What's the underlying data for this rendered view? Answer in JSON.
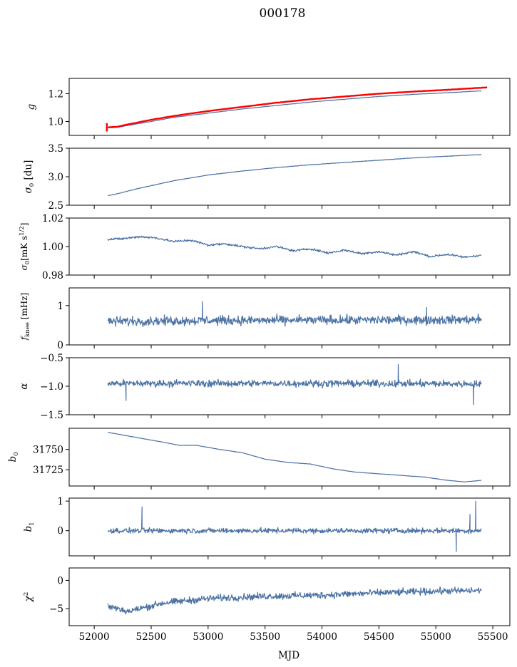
{
  "figure": {
    "title": "000178",
    "xlabel": "MJD"
  },
  "colors": {
    "series": "#4c72a4",
    "reference": "#ff0000",
    "axes": "#000000"
  },
  "chart_data": [
    {
      "type": "line",
      "ylabel": "g",
      "ylim": [
        0.9,
        1.31
      ],
      "xlim": [
        51780,
        55650
      ],
      "yticks": [
        1.0,
        1.2
      ],
      "ytick_labels": [
        "1.0",
        "1.2"
      ],
      "series": [
        {
          "role": "data",
          "x": [
            52120,
            52200,
            52300,
            52500,
            52700,
            53000,
            53300,
            53600,
            53900,
            54200,
            54500,
            54800,
            55100,
            55400
          ],
          "y": [
            0.955,
            0.958,
            0.972,
            1.0,
            1.03,
            1.06,
            1.09,
            1.115,
            1.14,
            1.16,
            1.18,
            1.195,
            1.207,
            1.22
          ]
        },
        {
          "role": "reference",
          "x": [
            52120,
            52200,
            52300,
            52500,
            52700,
            53000,
            53300,
            53600,
            53900,
            54200,
            54500,
            54800,
            55100,
            55450
          ],
          "y": [
            0.958,
            0.962,
            0.98,
            1.012,
            1.04,
            1.075,
            1.105,
            1.135,
            1.16,
            1.18,
            1.2,
            1.215,
            1.228,
            1.245
          ]
        }
      ]
    },
    {
      "type": "line",
      "ylabel": "σ0 [du]",
      "ylim": [
        2.5,
        3.5
      ],
      "xlim": [
        51780,
        55650
      ],
      "yticks": [
        2.5,
        3.0,
        3.5
      ],
      "ytick_labels": [
        "2.5",
        "3.0",
        "3.5"
      ],
      "series": [
        {
          "role": "data",
          "x": [
            52120,
            52200,
            52400,
            52700,
            53000,
            53300,
            53600,
            53900,
            54200,
            54500,
            54800,
            55100,
            55400
          ],
          "y": [
            2.67,
            2.7,
            2.8,
            2.93,
            3.03,
            3.1,
            3.16,
            3.21,
            3.25,
            3.29,
            3.33,
            3.36,
            3.39
          ]
        }
      ]
    },
    {
      "type": "line",
      "ylabel": "σ0[mK s1/2]",
      "ylim": [
        0.98,
        1.02
      ],
      "xlim": [
        51780,
        55650
      ],
      "yticks": [
        0.98,
        1.0,
        1.02
      ],
      "ytick_labels": [
        "0.98",
        "1.00",
        "1.02"
      ],
      "series": [
        {
          "role": "data",
          "x": [
            52120,
            52250,
            52400,
            52550,
            52700,
            52850,
            53000,
            53150,
            53300,
            53450,
            53600,
            53750,
            53900,
            54050,
            54200,
            54350,
            54500,
            54650,
            54800,
            54950,
            55100,
            55250,
            55400
          ],
          "y": [
            1.005,
            1.0055,
            1.007,
            1.006,
            1.0035,
            1.0045,
            1.001,
            1.002,
            1.0,
            0.9985,
            1.0,
            0.997,
            0.9985,
            0.9955,
            0.9975,
            0.995,
            0.9965,
            0.994,
            0.9965,
            0.993,
            0.9945,
            0.9925,
            0.994
          ]
        }
      ]
    },
    {
      "type": "line",
      "ylabel": "fknee [mHz]",
      "ylim": [
        0,
        1.45
      ],
      "xlim": [
        51780,
        55650
      ],
      "yticks": [
        0,
        1
      ],
      "ytick_labels": [
        "0",
        "1"
      ],
      "series": [
        {
          "role": "data",
          "x": [
            52120,
            53000,
            54000,
            55400
          ],
          "y": [
            0.6,
            0.62,
            0.63,
            0.64
          ]
        }
      ]
    },
    {
      "type": "line",
      "ylabel": "α",
      "ylim": [
        -1.5,
        -0.5
      ],
      "xlim": [
        51780,
        55650
      ],
      "yticks": [
        -1.5,
        -1.0,
        -0.5
      ],
      "ytick_labels": [
        "−1.5",
        "−1.0",
        "−0.5"
      ],
      "series": [
        {
          "role": "data",
          "x": [
            52120,
            53000,
            54000,
            55400
          ],
          "y": [
            -0.95,
            -0.95,
            -0.95,
            -0.96
          ]
        }
      ]
    },
    {
      "type": "line",
      "ylabel": "b0",
      "ylim": [
        31705,
        31776
      ],
      "xlim": [
        51780,
        55650
      ],
      "yticks": [
        31725,
        31750
      ],
      "ytick_labels": [
        "31725",
        "31750"
      ],
      "series": [
        {
          "role": "data",
          "x": [
            52120,
            52200,
            52400,
            52600,
            52750,
            52900,
            53100,
            53300,
            53500,
            53700,
            53900,
            54100,
            54300,
            54500,
            54700,
            54900,
            55100,
            55250,
            55400
          ],
          "y": [
            31771,
            31769,
            31764,
            31759,
            31755,
            31755,
            31750,
            31746,
            31738,
            31734,
            31732,
            31726,
            31722,
            31720,
            31718,
            31716,
            31712,
            31710,
            31712
          ]
        }
      ]
    },
    {
      "type": "line",
      "ylabel": "b1",
      "ylim": [
        -0.85,
        1.1
      ],
      "xlim": [
        51780,
        55650
      ],
      "yticks": [
        0,
        1
      ],
      "ytick_labels": [
        "0",
        "1"
      ],
      "series": [
        {
          "role": "data",
          "x": [
            52120,
            53000,
            54000,
            55400
          ],
          "y": [
            0.0,
            0.0,
            0.0,
            0.0
          ]
        }
      ]
    },
    {
      "type": "line",
      "ylabel": "χ2",
      "ylim": [
        -8,
        2.2
      ],
      "xlim": [
        51780,
        55650
      ],
      "yticks": [
        -5,
        0
      ],
      "ytick_labels": [
        "−5",
        "0"
      ],
      "series": [
        {
          "role": "data",
          "x": [
            52120,
            52300,
            52600,
            53000,
            53500,
            54000,
            54500,
            55000,
            55400
          ],
          "y": [
            -4.5,
            -5.5,
            -4.0,
            -3.2,
            -2.8,
            -2.6,
            -2.2,
            -1.9,
            -1.8
          ]
        }
      ]
    }
  ],
  "xaxis": {
    "ticks": [
      52000,
      52500,
      53000,
      53500,
      54000,
      54500,
      55000,
      55500
    ],
    "tick_labels": [
      "52000",
      "52500",
      "53000",
      "53500",
      "54000",
      "54500",
      "55000",
      "55500"
    ]
  }
}
